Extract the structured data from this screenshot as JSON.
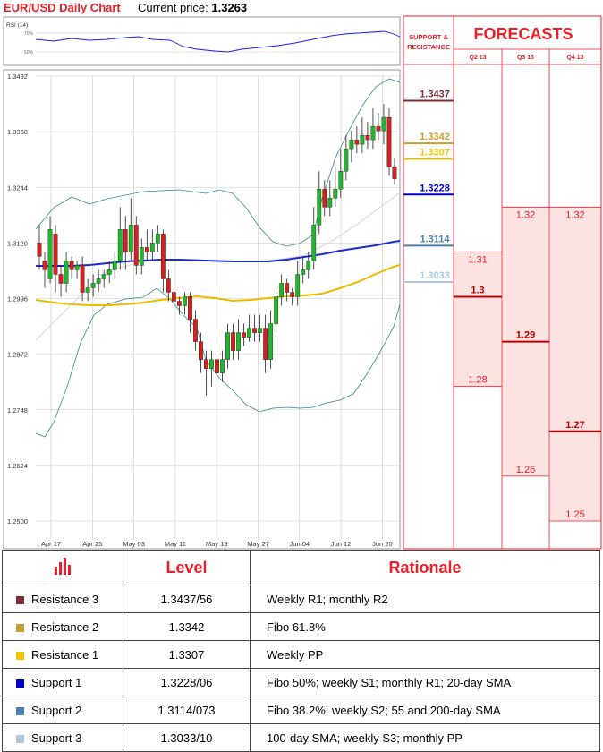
{
  "header": {
    "chart_title": "EUR/USD Daily Chart",
    "price_label": "Current price:",
    "price_value": "1.3263"
  },
  "rsi": {
    "label": "RSI (14)",
    "ticks": [
      "70%",
      "50%"
    ]
  },
  "panel": {
    "sr_label_1": "SUPPORT &",
    "sr_label_2": "RESISTANCE",
    "forecasts_title": "FORECASTS"
  },
  "colors": {
    "accent": "#e8202a",
    "r3": "#7b2f3b",
    "r2": "#c8a030",
    "r1": "#f5c400",
    "s1": "#0000cc",
    "s2": "#4a7fb0",
    "s3": "#b0c8dc"
  },
  "chart_data": {
    "type": "candlestick",
    "yticks": [
      "1.3492",
      "1.3368",
      "1.3244",
      "1.3120",
      "1.2996",
      "1.2872",
      "1.2748",
      "1.2624",
      "1.2500"
    ],
    "ylim": [
      1.25,
      1.3492
    ],
    "xticks": [
      "Apr 17",
      "Apr 25",
      "May 03",
      "May 11",
      "May 19",
      "May 27",
      "Jun 04",
      "Jun 12",
      "Jun 20"
    ],
    "sr_levels": [
      {
        "value": "1.3437",
        "color": "#7b2f3b"
      },
      {
        "value": "1.3342",
        "color": "#c8a030"
      },
      {
        "value": "1.3307",
        "color": "#f5c400"
      },
      {
        "value": "1.3228",
        "color": "#0000cc"
      },
      {
        "value": "1.3114",
        "color": "#4a7fb0"
      },
      {
        "value": "1.3033",
        "color": "#b0c8dc"
      }
    ],
    "forecasts": [
      {
        "quarter": "Q2 13",
        "high": "1.31",
        "mid": "1.3",
        "low": "1.28",
        "v_high": 1.31,
        "v_mid": 1.3,
        "v_low": 1.28
      },
      {
        "quarter": "Q3 13",
        "high": "1.32",
        "mid": "1.29",
        "low": "1.26",
        "v_high": 1.32,
        "v_mid": 1.29,
        "v_low": 1.26
      },
      {
        "quarter": "Q4 13",
        "high": "1.32",
        "mid": "1.27",
        "low": "1.25",
        "v_high": 1.32,
        "v_mid": 1.27,
        "v_low": 1.25
      }
    ]
  },
  "table": {
    "col_level": "Level",
    "col_rationale": "Rationale",
    "rows": [
      {
        "name": "Resistance 3",
        "level": "1.3437/56",
        "rationale": "Weekly R1; monthly R2",
        "color": "#7b2f3b"
      },
      {
        "name": "Resistance 2",
        "level": "1.3342",
        "rationale": "Fibo 61.8%",
        "color": "#c8a030"
      },
      {
        "name": "Resistance 1",
        "level": "1.3307",
        "rationale": "Weekly PP",
        "color": "#f5c400"
      },
      {
        "name": "Support 1",
        "level": "1.3228/06",
        "rationale": "Fibo 50%; weekly S1; monthly R1; 20-day SMA",
        "color": "#0000cc"
      },
      {
        "name": "Support 2",
        "level": "1.3114/073",
        "rationale": "Fibo 38.2%; weekly S2; 55 and 200-day SMA",
        "color": "#4a7fb0"
      },
      {
        "name": "Support 3",
        "level": "1.3033/10",
        "rationale": "100-day SMA; weekly S3; monthly PP",
        "color": "#b0c8dc"
      }
    ]
  }
}
